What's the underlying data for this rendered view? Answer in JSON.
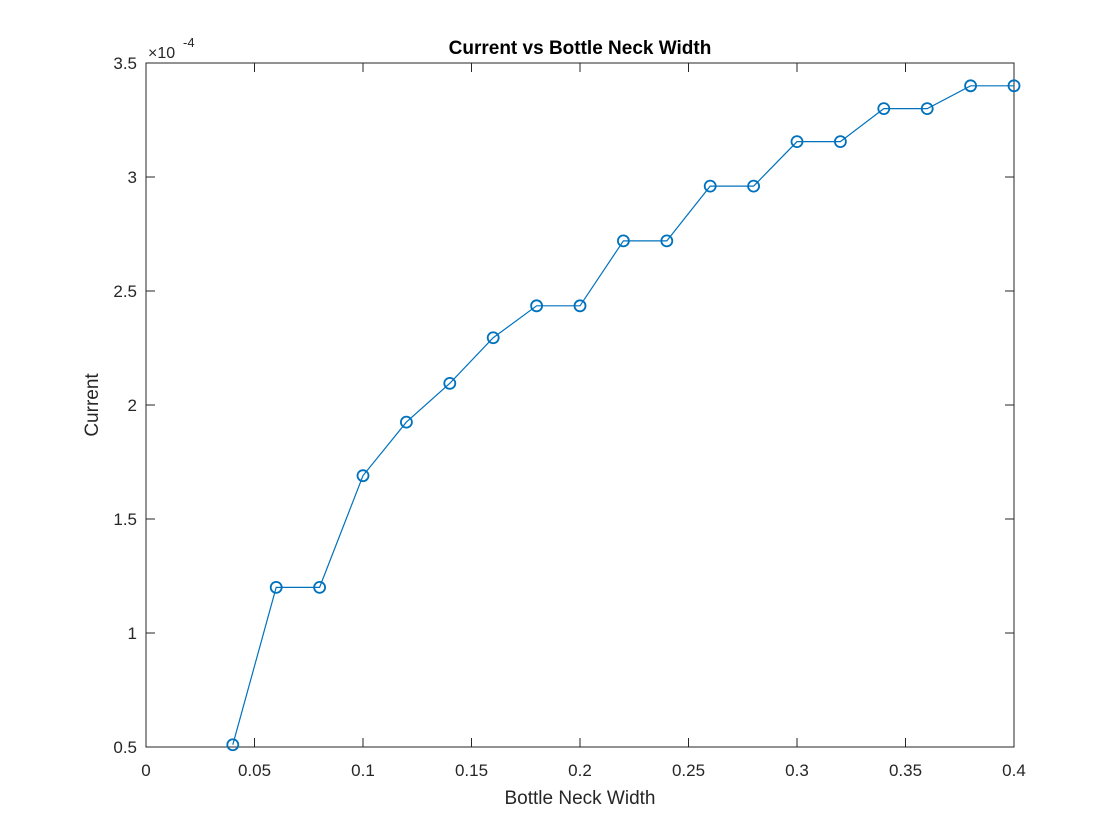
{
  "chart_data": {
    "type": "line",
    "title": "Current vs Bottle Neck Width",
    "xlabel": "Bottle Neck Width",
    "ylabel": "Current",
    "y_scale_multiplier": "×10",
    "y_scale_exponent": "-4",
    "xlim": [
      0,
      0.4
    ],
    "ylim": [
      0.5,
      3.5
    ],
    "x_ticks": [
      "0",
      "0.05",
      "0.1",
      "0.15",
      "0.2",
      "0.25",
      "0.3",
      "0.35",
      "0.4"
    ],
    "y_ticks": [
      "0.5",
      "1",
      "1.5",
      "2",
      "2.5",
      "3",
      "3.5"
    ],
    "grid": false,
    "marker": "circle",
    "series_color": "#0072BD",
    "axis_color": "#262626",
    "series": [
      {
        "x": [
          0.04,
          0.06,
          0.08,
          0.1,
          0.12,
          0.14,
          0.16,
          0.18,
          0.2,
          0.22,
          0.24,
          0.26,
          0.28,
          0.3,
          0.32,
          0.34,
          0.36,
          0.38,
          0.4
        ],
        "y": [
          0.51,
          1.2,
          1.2,
          1.69,
          1.925,
          2.095,
          2.295,
          2.435,
          2.435,
          2.72,
          2.72,
          2.96,
          2.96,
          3.155,
          3.155,
          3.3,
          3.3,
          3.4,
          3.4
        ]
      }
    ]
  }
}
